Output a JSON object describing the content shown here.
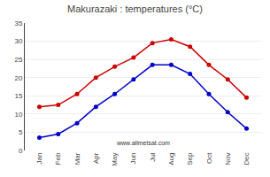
{
  "chart_data": {
    "type": "line",
    "title": "Makurazaki : temperatures (°C)",
    "categories": [
      "Jan",
      "Feb",
      "Mar",
      "Apr",
      "May",
      "Jun",
      "Jul",
      "Aug",
      "Sep",
      "Oct",
      "Nov",
      "Dec"
    ],
    "series": [
      {
        "color": "#cc0000",
        "marker": "circle",
        "values": [
          12.0,
          12.5,
          15.5,
          20.0,
          23.0,
          25.5,
          29.5,
          30.5,
          28.5,
          23.5,
          19.5,
          14.5
        ]
      },
      {
        "color": "#0000cc",
        "marker": "circle",
        "values": [
          3.5,
          4.5,
          7.5,
          12.0,
          15.5,
          19.5,
          23.5,
          23.5,
          21.0,
          15.5,
          10.5,
          6.0
        ]
      }
    ],
    "ylim": [
      0,
      35
    ],
    "yticks": [
      0,
      5,
      10,
      15,
      20,
      25,
      30,
      35
    ],
    "grid": true,
    "annotations": [
      "www.allmetsat.com"
    ]
  }
}
